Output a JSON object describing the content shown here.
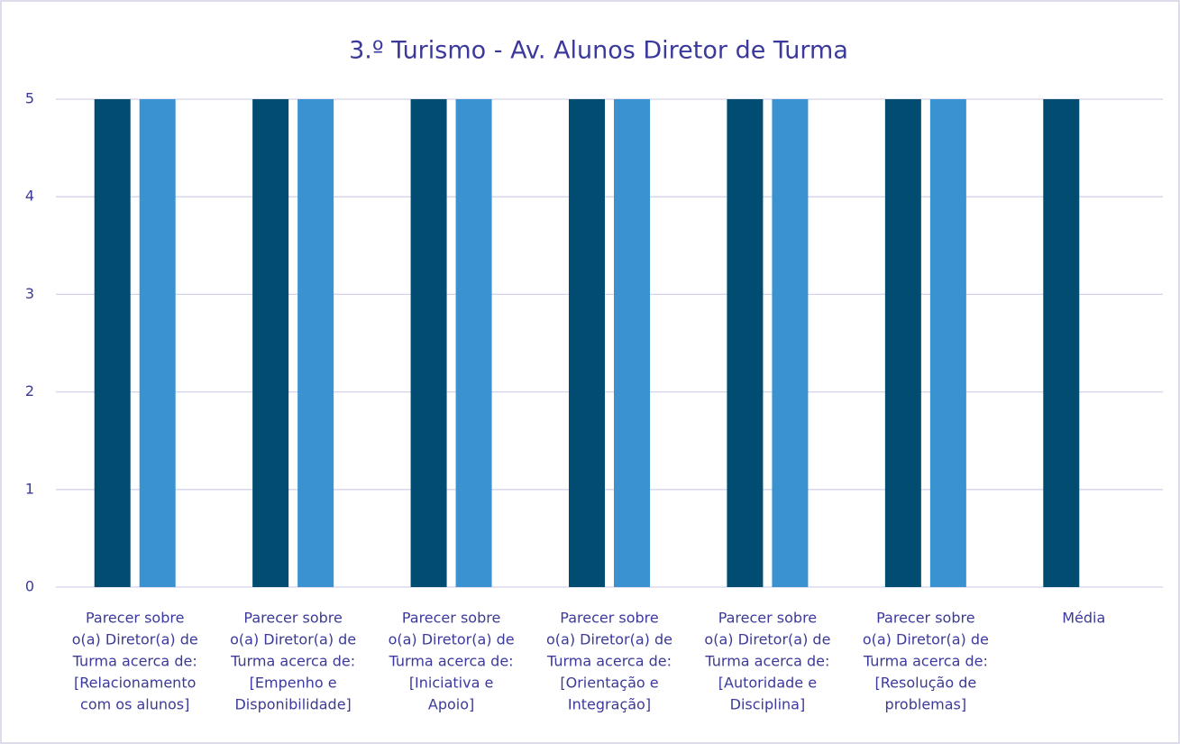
{
  "chart_data": {
    "type": "bar",
    "title": "3.º Turismo - Av. Alunos Diretor de Turma",
    "categories": [
      [
        "Parecer sobre",
        "o(a) Diretor(a) de",
        "Turma acerca de:",
        "[Relacionamento",
        "com os alunos]"
      ],
      [
        "Parecer sobre",
        "o(a) Diretor(a) de",
        "Turma acerca de:",
        "[Empenho e",
        "Disponibilidade]"
      ],
      [
        "Parecer sobre",
        "o(a) Diretor(a) de",
        "Turma acerca de:",
        "[Iniciativa e",
        "Apoio]"
      ],
      [
        "Parecer sobre",
        "o(a) Diretor(a) de",
        "Turma acerca de:",
        "[Orientação e",
        "Integração]"
      ],
      [
        "Parecer sobre",
        "o(a) Diretor(a) de",
        "Turma acerca de:",
        "[Autoridade e",
        "Disciplina]"
      ],
      [
        "Parecer sobre",
        "o(a) Diretor(a) de",
        "Turma acerca de:",
        "[Resolução de",
        "problemas]"
      ],
      [
        "Média"
      ]
    ],
    "series": [
      {
        "color": "#004d71",
        "values": [
          5,
          5,
          5,
          5,
          5,
          5,
          5
        ]
      },
      {
        "color": "#3a93d0",
        "values": [
          5,
          5,
          5,
          5,
          5,
          5,
          null
        ]
      }
    ],
    "ylim": [
      0,
      5
    ],
    "yticks": [
      0,
      1,
      2,
      3,
      4,
      5
    ],
    "grid": true
  }
}
